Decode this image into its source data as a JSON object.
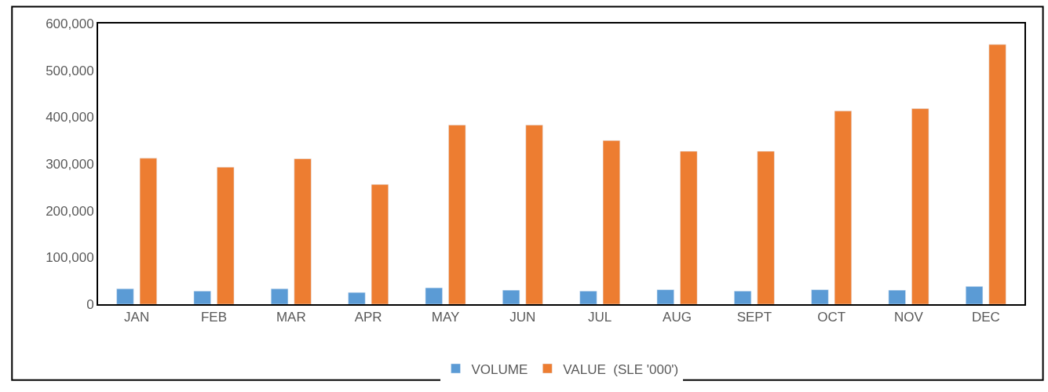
{
  "chart_data": {
    "type": "bar",
    "categories": [
      "JAN",
      "FEB",
      "MAR",
      "APR",
      "MAY",
      "JUN",
      "JUL",
      "AUG",
      "SEPT",
      "OCT",
      "NOV",
      "DEC"
    ],
    "series": [
      {
        "name": "VOLUME",
        "color": "#5b9bd5",
        "values": [
          33000,
          28000,
          33000,
          25000,
          35000,
          30000,
          28000,
          31000,
          28000,
          31000,
          30000,
          38000
        ]
      },
      {
        "name": "VALUE  (SLE '000')",
        "color": "#ed7d31",
        "values": [
          312000,
          293000,
          311000,
          256000,
          383000,
          383000,
          350000,
          327000,
          327000,
          413000,
          418000,
          555000
        ]
      }
    ],
    "ylim": [
      0,
      600000
    ],
    "yticks": [
      {
        "value": 0,
        "label": "0"
      },
      {
        "value": 100000,
        "label": "100,000"
      },
      {
        "value": 200000,
        "label": "200,000"
      },
      {
        "value": 300000,
        "label": "300,000"
      },
      {
        "value": 400000,
        "label": "400,000"
      },
      {
        "value": 500000,
        "label": "500,000"
      },
      {
        "value": 600000,
        "label": "600,000"
      }
    ],
    "grid": false,
    "legend": "bottom"
  }
}
